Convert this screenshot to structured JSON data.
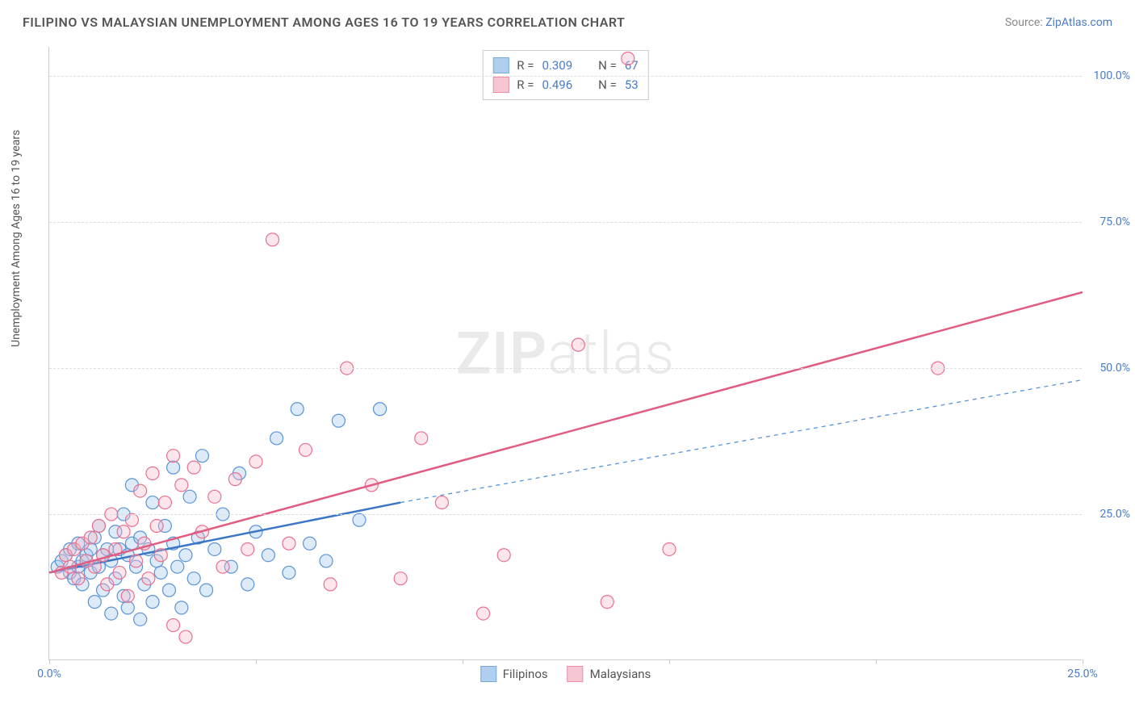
{
  "header": {
    "title": "FILIPINO VS MALAYSIAN UNEMPLOYMENT AMONG AGES 16 TO 19 YEARS CORRELATION CHART",
    "source_prefix": "Source: ",
    "source_link": "ZipAtlas.com"
  },
  "watermark": {
    "bold": "ZIP",
    "light": "atlas"
  },
  "chart": {
    "type": "scatter",
    "ylabel": "Unemployment Among Ages 16 to 19 years",
    "background_color": "#ffffff",
    "grid_color": "#dddddd",
    "axis_color": "#cccccc",
    "label_color": "#4a7bc8",
    "xlim": [
      0,
      25
    ],
    "ylim": [
      0,
      105
    ],
    "x_ticks": [
      0,
      5,
      10,
      15,
      20,
      25
    ],
    "x_tick_labels": [
      "0.0%",
      "",
      "",
      "",
      "",
      "25.0%"
    ],
    "y_ticks": [
      25,
      50,
      75,
      100
    ],
    "y_tick_labels": [
      "25.0%",
      "50.0%",
      "75.0%",
      "100.0%"
    ],
    "marker_radius": 8,
    "marker_stroke_width": 1.2,
    "marker_fill_opacity": 0.35,
    "series": [
      {
        "key": "filipinos",
        "label": "Filipinos",
        "color_fill": "#9dc3eb",
        "color_stroke": "#5a94d6",
        "R": "0.309",
        "N": "67",
        "trend": {
          "x1": 0,
          "y1": 15,
          "x2": 8.5,
          "y2": 27,
          "stroke": "#3b76c4",
          "width": 2.5,
          "dash": ""
        },
        "trend_ext": {
          "x1": 8.5,
          "y1": 27,
          "x2": 25,
          "y2": 48,
          "stroke": "#5a94d6",
          "width": 1.3,
          "dash": "5,5"
        },
        "points": [
          [
            0.2,
            16
          ],
          [
            0.3,
            17
          ],
          [
            0.4,
            18
          ],
          [
            0.5,
            15
          ],
          [
            0.5,
            19
          ],
          [
            0.6,
            14
          ],
          [
            0.7,
            20
          ],
          [
            0.7,
            16
          ],
          [
            0.8,
            17
          ],
          [
            0.8,
            13
          ],
          [
            0.9,
            18
          ],
          [
            1.0,
            19
          ],
          [
            1.0,
            15
          ],
          [
            1.1,
            21
          ],
          [
            1.1,
            10
          ],
          [
            1.2,
            16
          ],
          [
            1.2,
            23
          ],
          [
            1.3,
            18
          ],
          [
            1.3,
            12
          ],
          [
            1.4,
            19
          ],
          [
            1.5,
            17
          ],
          [
            1.5,
            8
          ],
          [
            1.6,
            22
          ],
          [
            1.6,
            14
          ],
          [
            1.7,
            19
          ],
          [
            1.8,
            11
          ],
          [
            1.8,
            25
          ],
          [
            1.9,
            18
          ],
          [
            1.9,
            9
          ],
          [
            2.0,
            20
          ],
          [
            2.0,
            30
          ],
          [
            2.1,
            16
          ],
          [
            2.2,
            7
          ],
          [
            2.2,
            21
          ],
          [
            2.3,
            13
          ],
          [
            2.4,
            19
          ],
          [
            2.5,
            27
          ],
          [
            2.5,
            10
          ],
          [
            2.6,
            17
          ],
          [
            2.7,
            15
          ],
          [
            2.8,
            23
          ],
          [
            2.9,
            12
          ],
          [
            3.0,
            20
          ],
          [
            3.0,
            33
          ],
          [
            3.1,
            16
          ],
          [
            3.2,
            9
          ],
          [
            3.3,
            18
          ],
          [
            3.4,
            28
          ],
          [
            3.5,
            14
          ],
          [
            3.6,
            21
          ],
          [
            3.7,
            35
          ],
          [
            3.8,
            12
          ],
          [
            4.0,
            19
          ],
          [
            4.2,
            25
          ],
          [
            4.4,
            16
          ],
          [
            4.6,
            32
          ],
          [
            4.8,
            13
          ],
          [
            5.0,
            22
          ],
          [
            5.3,
            18
          ],
          [
            5.5,
            38
          ],
          [
            5.8,
            15
          ],
          [
            6.0,
            43
          ],
          [
            6.3,
            20
          ],
          [
            6.7,
            17
          ],
          [
            7.0,
            41
          ],
          [
            7.5,
            24
          ],
          [
            8.0,
            43
          ]
        ]
      },
      {
        "key": "malaysians",
        "label": "Malaysians",
        "color_fill": "#f5b8c8",
        "color_stroke": "#e8718f",
        "R": "0.496",
        "N": "53",
        "trend": {
          "x1": 0,
          "y1": 15,
          "x2": 25,
          "y2": 63,
          "stroke": "#e05c80",
          "width": 2.5,
          "dash": ""
        },
        "points": [
          [
            0.3,
            15
          ],
          [
            0.4,
            18
          ],
          [
            0.5,
            16
          ],
          [
            0.6,
            19
          ],
          [
            0.7,
            14
          ],
          [
            0.8,
            20
          ],
          [
            0.9,
            17
          ],
          [
            1.0,
            21
          ],
          [
            1.1,
            16
          ],
          [
            1.2,
            23
          ],
          [
            1.3,
            18
          ],
          [
            1.4,
            13
          ],
          [
            1.5,
            25
          ],
          [
            1.6,
            19
          ],
          [
            1.7,
            15
          ],
          [
            1.8,
            22
          ],
          [
            1.9,
            11
          ],
          [
            2.0,
            24
          ],
          [
            2.1,
            17
          ],
          [
            2.2,
            29
          ],
          [
            2.3,
            20
          ],
          [
            2.4,
            14
          ],
          [
            2.5,
            32
          ],
          [
            2.6,
            23
          ],
          [
            2.7,
            18
          ],
          [
            2.8,
            27
          ],
          [
            3.0,
            35
          ],
          [
            3.0,
            6
          ],
          [
            3.2,
            30
          ],
          [
            3.3,
            4
          ],
          [
            3.5,
            33
          ],
          [
            3.7,
            22
          ],
          [
            4.0,
            28
          ],
          [
            4.2,
            16
          ],
          [
            4.5,
            31
          ],
          [
            4.8,
            19
          ],
          [
            5.0,
            34
          ],
          [
            5.4,
            72
          ],
          [
            5.8,
            20
          ],
          [
            6.2,
            36
          ],
          [
            6.8,
            13
          ],
          [
            7.2,
            50
          ],
          [
            7.8,
            30
          ],
          [
            8.5,
            14
          ],
          [
            9.0,
            38
          ],
          [
            9.5,
            27
          ],
          [
            10.5,
            8
          ],
          [
            11.0,
            18
          ],
          [
            12.8,
            54
          ],
          [
            13.5,
            10
          ],
          [
            14.0,
            103
          ],
          [
            15.0,
            19
          ],
          [
            21.5,
            50
          ]
        ]
      }
    ]
  },
  "legend_top": {
    "R_label": "R =",
    "N_label": "N ="
  }
}
